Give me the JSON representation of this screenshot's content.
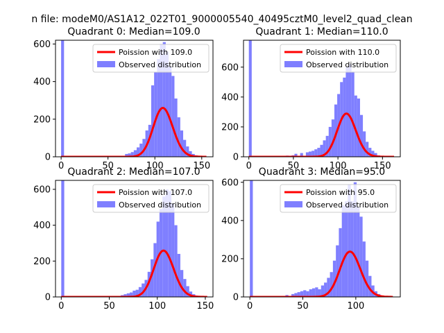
{
  "figure_title": "n file: modeM0/AS1A12_022T01_9000005540_40495cztM0_level2_quad_clean",
  "chart_data": [
    {
      "type": "bar",
      "title": "Quadrant 0: Median=109.0",
      "xlabel": "",
      "ylabel": "",
      "xlim": [
        -6,
        162
      ],
      "ylim": [
        0,
        620
      ],
      "xticks": [
        0,
        50,
        100,
        150
      ],
      "yticks": [
        0,
        200,
        400,
        600
      ],
      "grid": false,
      "legend": {
        "position": "top-right",
        "entries": [
          "Poission with 109.0",
          "Observed distribution"
        ]
      },
      "series": [
        {
          "name": "Poission with 109.0",
          "kind": "line",
          "color": "#ff0000",
          "lambda": 109.0,
          "scale": 6800,
          "x_range": [
            0,
            155
          ]
        },
        {
          "name": "Observed distribution",
          "kind": "histogram",
          "color": "#7f7fff",
          "bin_width": 3.1,
          "bins": [
            [
              0,
              620
            ],
            [
              68.2,
              15
            ],
            [
              71.3,
              18
            ],
            [
              74.4,
              25
            ],
            [
              77.5,
              35
            ],
            [
              80.6,
              50
            ],
            [
              83.7,
              70
            ],
            [
              86.8,
              95
            ],
            [
              89.9,
              140
            ],
            [
              93,
              170
            ],
            [
              96.1,
              380
            ],
            [
              99.2,
              450
            ],
            [
              102.3,
              520
            ],
            [
              105.4,
              600
            ],
            [
              108.5,
              610
            ],
            [
              111.6,
              560
            ],
            [
              114.7,
              480
            ],
            [
              117.8,
              430
            ],
            [
              120.9,
              310
            ],
            [
              124,
              210
            ],
            [
              127.1,
              140
            ],
            [
              130.2,
              90
            ],
            [
              133.3,
              55
            ],
            [
              136.4,
              30
            ],
            [
              139.5,
              15
            ],
            [
              142.6,
              8
            ]
          ]
        }
      ]
    },
    {
      "type": "bar",
      "title": "Quadrant 1: Median=110.0",
      "xlabel": "",
      "ylabel": "",
      "xlim": [
        -6,
        170
      ],
      "ylim": [
        0,
        780
      ],
      "xticks": [
        0,
        50,
        100,
        150
      ],
      "yticks": [
        0,
        200,
        400,
        600
      ],
      "grid": false,
      "legend": {
        "position": "top-right",
        "entries": [
          "Poission with 110.0",
          "Observed distribution"
        ]
      },
      "series": [
        {
          "name": "Poission with 110.0",
          "kind": "line",
          "color": "#ff0000",
          "lambda": 110.0,
          "scale": 7600,
          "x_range": [
            0,
            163
          ]
        },
        {
          "name": "Observed distribution",
          "kind": "histogram",
          "color": "#7f7fff",
          "bin_width": 3.2,
          "bins": [
            [
              0,
              780
            ],
            [
              35.2,
              5
            ],
            [
              41.6,
              8
            ],
            [
              48,
              10
            ],
            [
              51.2,
              20
            ],
            [
              57.6,
              25
            ],
            [
              64,
              30
            ],
            [
              67.2,
              35
            ],
            [
              70.4,
              40
            ],
            [
              73.6,
              50
            ],
            [
              76.8,
              60
            ],
            [
              80,
              80
            ],
            [
              83.2,
              110
            ],
            [
              86.4,
              140
            ],
            [
              89.6,
              200
            ],
            [
              92.8,
              250
            ],
            [
              96,
              350
            ],
            [
              99.2,
              420
            ],
            [
              102.4,
              500
            ],
            [
              105.6,
              530
            ],
            [
              108.8,
              600
            ],
            [
              112,
              620
            ],
            [
              115.2,
              570
            ],
            [
              118.4,
              410
            ],
            [
              121.6,
              390
            ],
            [
              124.8,
              280
            ],
            [
              128,
              170
            ],
            [
              131.2,
              100
            ],
            [
              134.4,
              60
            ],
            [
              137.6,
              40
            ],
            [
              140.8,
              25
            ],
            [
              144,
              10
            ]
          ]
        }
      ]
    },
    {
      "type": "bar",
      "title": "Quadrant 2: Median=107.0",
      "xlabel": "",
      "ylabel": "",
      "xlim": [
        -6,
        158
      ],
      "ylim": [
        0,
        650
      ],
      "xticks": [
        0,
        50,
        100,
        150
      ],
      "yticks": [
        0,
        200,
        400,
        600
      ],
      "grid": false,
      "legend": {
        "position": "top-right",
        "entries": [
          "Poission with 107.0",
          "Observed distribution"
        ]
      },
      "series": [
        {
          "name": "Poission with 107.0",
          "kind": "line",
          "color": "#ff0000",
          "lambda": 107.0,
          "scale": 6700,
          "x_range": [
            0,
            152
          ]
        },
        {
          "name": "Observed distribution",
          "kind": "histogram",
          "color": "#7f7fff",
          "bin_width": 3.1,
          "bins": [
            [
              0,
              650
            ],
            [
              62,
              10
            ],
            [
              65.1,
              15
            ],
            [
              68.2,
              20
            ],
            [
              71.3,
              25
            ],
            [
              74.4,
              35
            ],
            [
              77.5,
              40
            ],
            [
              80.6,
              55
            ],
            [
              83.7,
              75
            ],
            [
              86.8,
              95
            ],
            [
              89.9,
              140
            ],
            [
              93,
              210
            ],
            [
              96.1,
              300
            ],
            [
              99.2,
              420
            ],
            [
              102.3,
              490
            ],
            [
              105.4,
              560
            ],
            [
              108.5,
              600
            ],
            [
              111.6,
              590
            ],
            [
              114.7,
              520
            ],
            [
              117.8,
              400
            ],
            [
              120.9,
              240
            ],
            [
              124,
              150
            ],
            [
              127.1,
              100
            ],
            [
              130.2,
              60
            ],
            [
              133.3,
              30
            ],
            [
              136.4,
              15
            ],
            [
              139.5,
              8
            ]
          ]
        }
      ]
    },
    {
      "type": "bar",
      "title": "Quadrant 3: Median=95.0",
      "xlabel": "",
      "ylabel": "",
      "xlim": [
        -6,
        142
      ],
      "ylim": [
        0,
        610
      ],
      "xticks": [
        0,
        50,
        100
      ],
      "yticks": [
        0,
        200,
        400,
        600
      ],
      "grid": false,
      "legend": {
        "position": "top-right",
        "entries": [
          "Poission with 95.0",
          "Observed distribution"
        ]
      },
      "series": [
        {
          "name": "Poission with 95.0",
          "kind": "line",
          "color": "#ff0000",
          "lambda": 95.0,
          "scale": 5800,
          "x_range": [
            0,
            135
          ]
        },
        {
          "name": "Observed distribution",
          "kind": "histogram",
          "color": "#7f7fff",
          "bin_width": 2.8,
          "bins": [
            [
              0,
              610
            ],
            [
              33.6,
              10
            ],
            [
              39.2,
              15
            ],
            [
              42,
              20
            ],
            [
              44.8,
              25
            ],
            [
              47.6,
              30
            ],
            [
              50.4,
              35
            ],
            [
              53.2,
              30
            ],
            [
              56,
              40
            ],
            [
              58.8,
              45
            ],
            [
              61.6,
              50
            ],
            [
              64.4,
              40
            ],
            [
              67.2,
              60
            ],
            [
              70,
              75
            ],
            [
              72.8,
              100
            ],
            [
              75.6,
              130
            ],
            [
              78.4,
              190
            ],
            [
              81.2,
              270
            ],
            [
              84,
              360
            ],
            [
              86.8,
              480
            ],
            [
              89.6,
              500
            ],
            [
              92.4,
              590
            ],
            [
              95.2,
              500
            ],
            [
              98,
              600
            ],
            [
              100.8,
              470
            ],
            [
              103.6,
              420
            ],
            [
              106.4,
              290
            ],
            [
              109.2,
              190
            ],
            [
              112,
              110
            ],
            [
              114.8,
              60
            ],
            [
              117.6,
              30
            ],
            [
              120.4,
              15
            ]
          ]
        }
      ]
    }
  ]
}
